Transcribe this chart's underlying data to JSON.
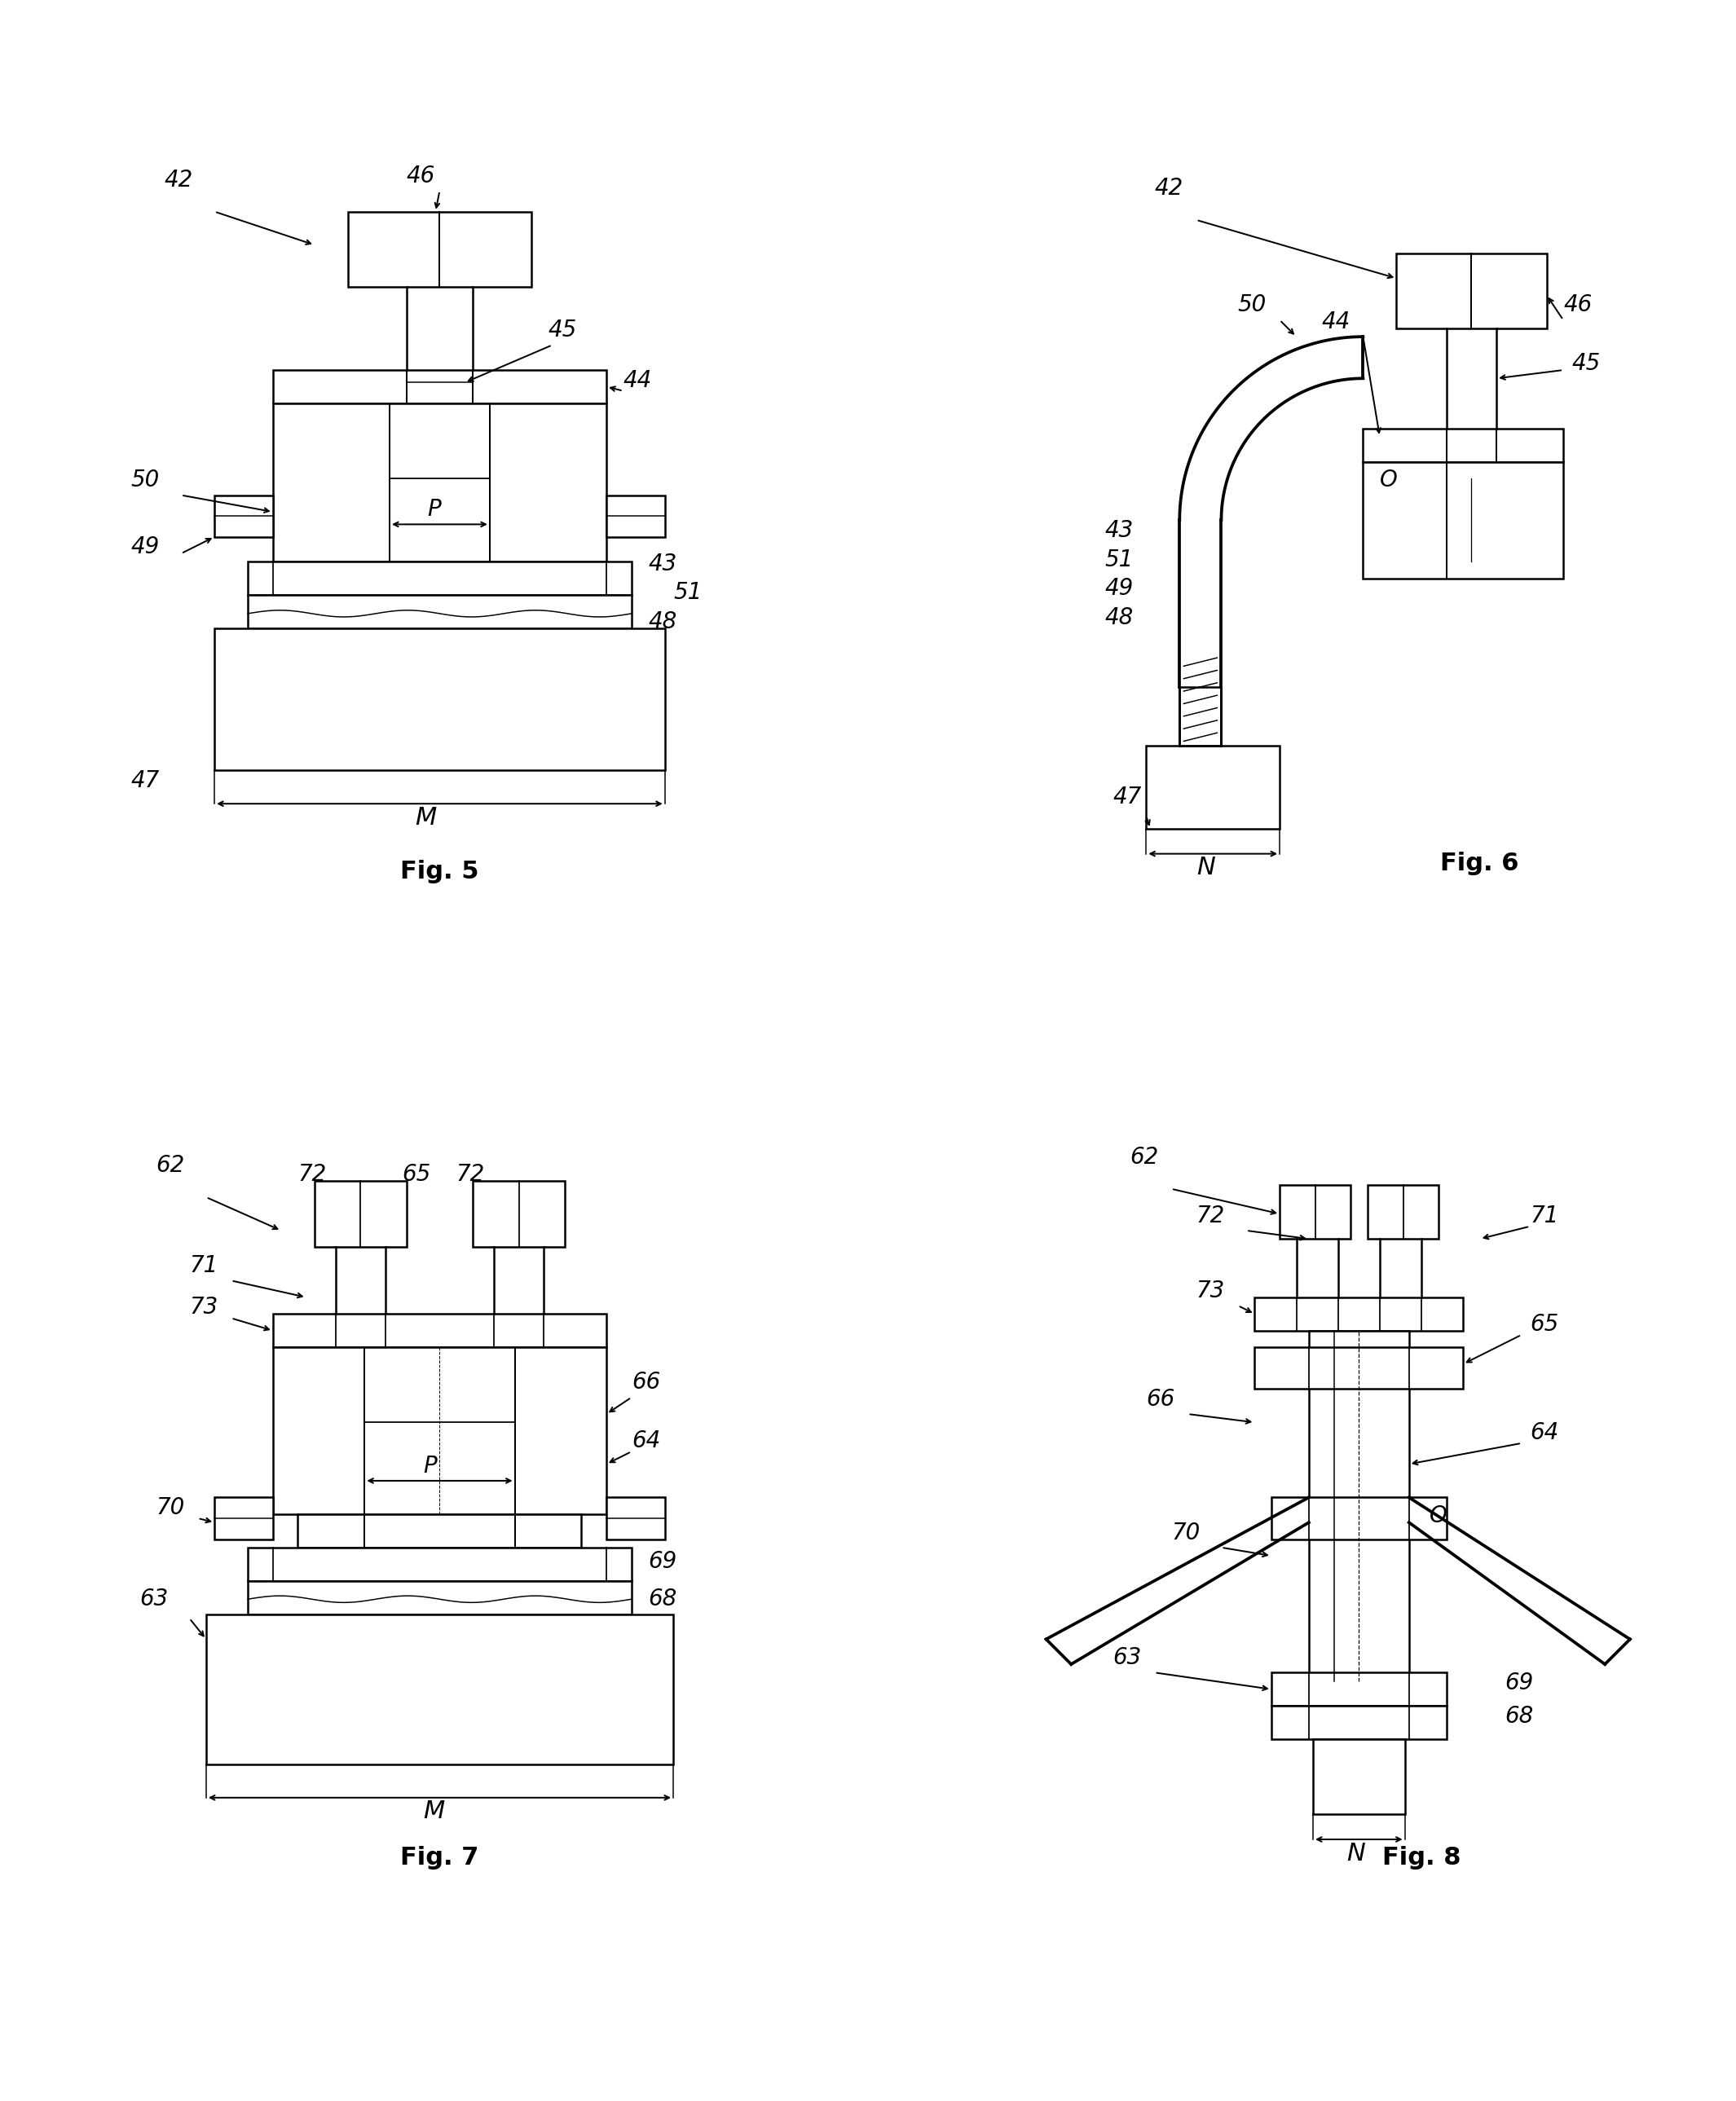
{
  "fig_labels": [
    "Fig. 5",
    "Fig. 6",
    "Fig. 7",
    "Fig. 8"
  ],
  "background_color": "#ffffff",
  "line_color": "#000000",
  "line_width": 1.8,
  "fig_label_fontsize": 22,
  "annotation_fontsize": 20
}
